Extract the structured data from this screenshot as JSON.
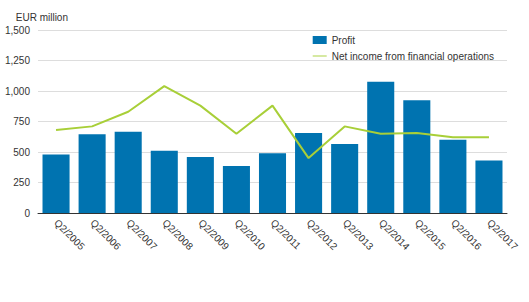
{
  "chart_data": {
    "type": "bar",
    "y_label": "EUR million",
    "categories": [
      "Q2/2005",
      "Q2/2006",
      "Q2/2007",
      "Q2/2008",
      "Q2/2009",
      "Q2/2010",
      "Q2/2011",
      "Q2/2012",
      "Q2/2013",
      "Q2/2014",
      "Q2/2015",
      "Q2/2016",
      "Q2/2017"
    ],
    "series": [
      {
        "name": "Profit",
        "type": "bar",
        "color": "#0073b0",
        "values": [
          480,
          645,
          665,
          510,
          460,
          385,
          490,
          655,
          565,
          1075,
          925,
          600,
          430
        ]
      },
      {
        "name": "Net income from financial operations",
        "type": "line",
        "color": "#a8cf38",
        "values": [
          680,
          710,
          830,
          1040,
          880,
          650,
          880,
          450,
          710,
          650,
          655,
          620,
          620
        ]
      }
    ],
    "ylim": [
      0,
      1500
    ],
    "yticks": [
      0,
      250,
      500,
      750,
      1000,
      1250,
      1500
    ],
    "grid": true,
    "legend": "top-right"
  }
}
